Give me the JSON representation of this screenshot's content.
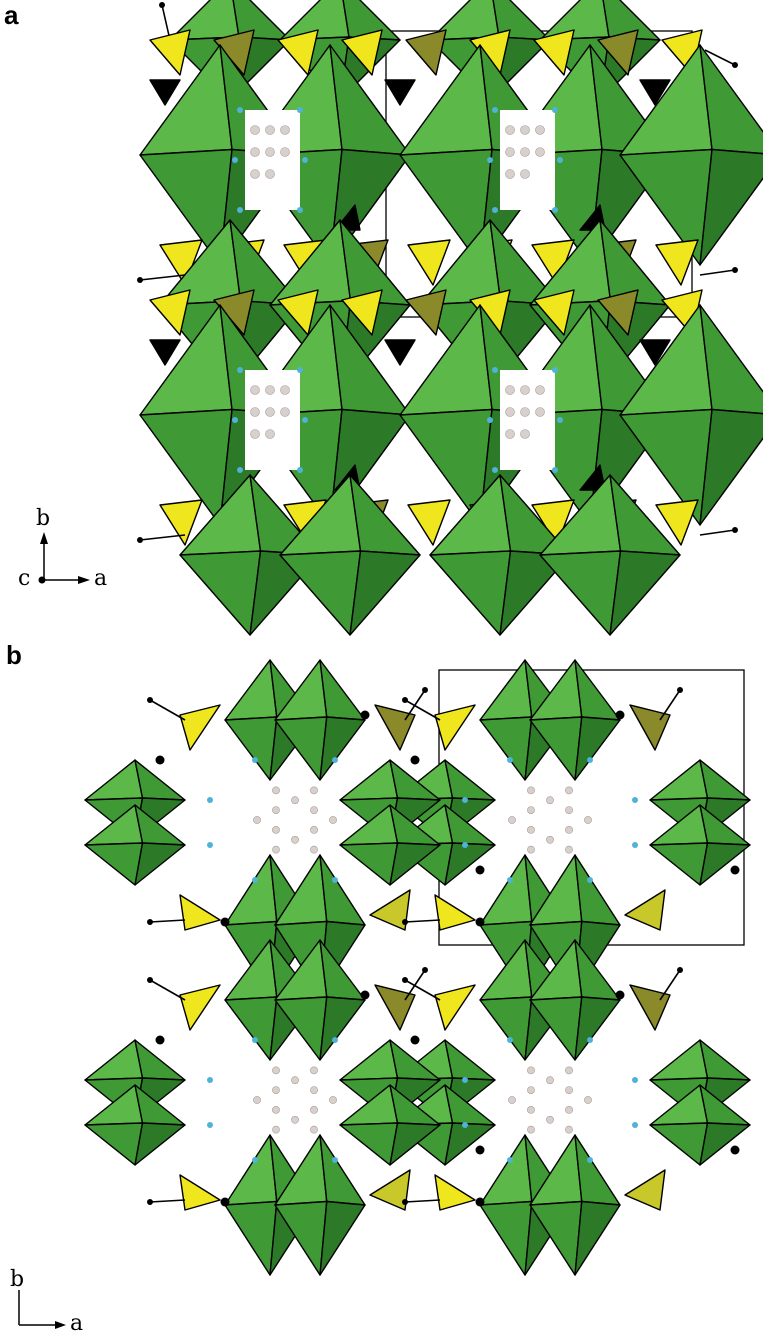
{
  "figure": {
    "panels": [
      {
        "label": "a",
        "axes": {
          "up": "b",
          "right": "a",
          "origin": "c"
        }
      },
      {
        "label": "b",
        "axes": {
          "up": "b",
          "right": "a"
        }
      }
    ]
  },
  "colors": {
    "octahedron_light": "#5cb848",
    "octahedron_mid": "#3f9a35",
    "octahedron_dark": "#2c7a27",
    "tetrahedron_yellow": "#f0e61e",
    "tetrahedron_olive": "#8a8a2a",
    "void_atom": "#d8d0cc",
    "linker_atom": "#4fb3d9",
    "edge": "#000000",
    "background": "#ffffff"
  }
}
